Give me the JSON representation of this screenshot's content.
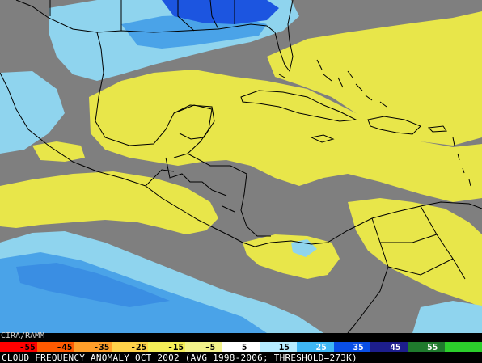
{
  "map": {
    "credit": "CIRA/RAMM",
    "caption": "CLOUD FREQUENCY ANOMALY OCT 2002 (AVG 1998-2006; THRESHOLD=273K)",
    "colors": {
      "background_gray": "#7f7f7f",
      "positive_yellow": "#e8e64a",
      "negative_light_blue": "#8fd4ee",
      "negative_mid_blue": "#4aa3e8",
      "negative_deep_blue": "#1c55e0",
      "coastline": "#000000"
    }
  },
  "scale": {
    "ticks": [
      "-55",
      "-45",
      "-35",
      "-25",
      "-15",
      "-5",
      "5",
      "15",
      "25",
      "35",
      "45",
      "55"
    ],
    "colors": [
      "#ff0000",
      "#ff5a00",
      "#ff9f2a",
      "#ffd34a",
      "#f4ee58",
      "#f3f38a",
      "#ffffff",
      "#b6ecff",
      "#3fb7f5",
      "#0a4fe6",
      "#1d1e8c",
      "#1f7a2d",
      "#2ccf2c"
    ]
  }
}
